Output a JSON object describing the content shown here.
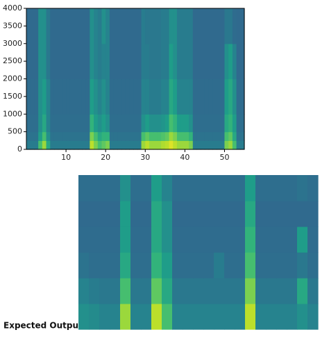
{
  "chart_data": [
    {
      "type": "heatmap",
      "colormap": "viridis",
      "clim": [
        0,
        1
      ],
      "xlim": [
        0,
        55
      ],
      "ylim": [
        0,
        4000
      ],
      "xticks": [
        10,
        20,
        30,
        40,
        50
      ],
      "yticks": [
        0,
        500,
        1000,
        1500,
        2000,
        2500,
        3000,
        3500,
        4000
      ],
      "xbins": [
        0,
        1,
        2,
        3,
        4,
        5,
        6,
        7,
        8,
        9,
        10,
        11,
        12,
        13,
        14,
        15,
        16,
        17,
        18,
        19,
        20,
        21,
        22,
        23,
        24,
        25,
        26,
        27,
        28,
        29,
        30,
        31,
        32,
        33,
        34,
        35,
        36,
        37,
        38,
        39,
        40,
        41,
        42,
        43,
        44,
        45,
        46,
        47,
        48,
        49,
        50,
        51,
        52,
        53,
        54,
        55
      ],
      "ybins": [
        0,
        250,
        500,
        1000,
        2000,
        3000,
        4000
      ],
      "z": [
        [
          0.42,
          0.42,
          0.42,
          0.7,
          0.85,
          0.6,
          0.42,
          0.42,
          0.42,
          0.42,
          0.42,
          0.42,
          0.42,
          0.42,
          0.42,
          0.42,
          0.9,
          0.8,
          0.7,
          0.75,
          0.8,
          0.42,
          0.42,
          0.42,
          0.42,
          0.42,
          0.42,
          0.42,
          0.42,
          0.85,
          0.9,
          0.85,
          0.85,
          0.85,
          0.88,
          0.9,
          0.95,
          0.9,
          0.85,
          0.85,
          0.85,
          0.8,
          0.42,
          0.42,
          0.42,
          0.42,
          0.42,
          0.42,
          0.42,
          0.42,
          0.8,
          0.85,
          0.7,
          0.42,
          0.42
        ],
        [
          0.38,
          0.38,
          0.38,
          0.55,
          0.7,
          0.5,
          0.38,
          0.38,
          0.38,
          0.38,
          0.38,
          0.38,
          0.38,
          0.38,
          0.38,
          0.38,
          0.8,
          0.7,
          0.6,
          0.65,
          0.65,
          0.38,
          0.38,
          0.38,
          0.38,
          0.38,
          0.38,
          0.38,
          0.38,
          0.7,
          0.75,
          0.7,
          0.7,
          0.7,
          0.72,
          0.75,
          0.85,
          0.8,
          0.7,
          0.7,
          0.7,
          0.65,
          0.38,
          0.38,
          0.38,
          0.38,
          0.38,
          0.38,
          0.38,
          0.38,
          0.7,
          0.75,
          0.6,
          0.38,
          0.38
        ],
        [
          0.36,
          0.36,
          0.36,
          0.5,
          0.6,
          0.45,
          0.36,
          0.36,
          0.36,
          0.36,
          0.36,
          0.36,
          0.36,
          0.36,
          0.36,
          0.36,
          0.65,
          0.55,
          0.5,
          0.55,
          0.5,
          0.36,
          0.36,
          0.36,
          0.36,
          0.36,
          0.36,
          0.36,
          0.36,
          0.5,
          0.55,
          0.5,
          0.5,
          0.5,
          0.52,
          0.55,
          0.7,
          0.65,
          0.55,
          0.55,
          0.55,
          0.5,
          0.36,
          0.36,
          0.36,
          0.36,
          0.36,
          0.36,
          0.36,
          0.36,
          0.6,
          0.65,
          0.55,
          0.36,
          0.36
        ],
        [
          0.35,
          0.35,
          0.35,
          0.5,
          0.55,
          0.45,
          0.35,
          0.35,
          0.35,
          0.35,
          0.35,
          0.35,
          0.35,
          0.35,
          0.35,
          0.35,
          0.55,
          0.5,
          0.45,
          0.5,
          0.45,
          0.35,
          0.35,
          0.35,
          0.35,
          0.35,
          0.35,
          0.35,
          0.35,
          0.45,
          0.45,
          0.42,
          0.42,
          0.42,
          0.45,
          0.45,
          0.6,
          0.55,
          0.45,
          0.45,
          0.45,
          0.45,
          0.35,
          0.35,
          0.35,
          0.35,
          0.35,
          0.35,
          0.35,
          0.35,
          0.55,
          0.6,
          0.5,
          0.35,
          0.35
        ],
        [
          0.34,
          0.34,
          0.34,
          0.5,
          0.5,
          0.4,
          0.34,
          0.34,
          0.34,
          0.34,
          0.34,
          0.34,
          0.34,
          0.34,
          0.34,
          0.34,
          0.5,
          0.45,
          0.42,
          0.45,
          0.45,
          0.34,
          0.34,
          0.34,
          0.34,
          0.34,
          0.34,
          0.34,
          0.34,
          0.42,
          0.42,
          0.4,
          0.4,
          0.4,
          0.42,
          0.42,
          0.55,
          0.5,
          0.42,
          0.42,
          0.42,
          0.42,
          0.34,
          0.34,
          0.34,
          0.34,
          0.34,
          0.34,
          0.34,
          0.34,
          0.5,
          0.55,
          0.45,
          0.34,
          0.34
        ],
        [
          0.34,
          0.34,
          0.34,
          0.5,
          0.5,
          0.4,
          0.34,
          0.34,
          0.34,
          0.34,
          0.34,
          0.34,
          0.34,
          0.34,
          0.34,
          0.34,
          0.5,
          0.45,
          0.42,
          0.5,
          0.45,
          0.34,
          0.34,
          0.34,
          0.34,
          0.34,
          0.34,
          0.34,
          0.34,
          0.42,
          0.4,
          0.4,
          0.4,
          0.4,
          0.42,
          0.42,
          0.5,
          0.5,
          0.42,
          0.42,
          0.42,
          0.42,
          0.34,
          0.34,
          0.34,
          0.34,
          0.34,
          0.34,
          0.34,
          0.34,
          0.4,
          0.4,
          0.35,
          0.34,
          0.34
        ]
      ]
    },
    {
      "type": "heatmap",
      "colormap": "viridis",
      "clim": [
        0,
        1
      ],
      "label": "Expected Output",
      "z": [
        [
          0.5,
          0.48,
          0.45,
          0.45,
          0.85,
          0.45,
          0.45,
          0.9,
          0.7,
          0.45,
          0.45,
          0.45,
          0.45,
          0.45,
          0.45,
          0.45,
          0.9,
          0.45,
          0.45,
          0.45,
          0.45,
          0.5,
          0.45
        ],
        [
          0.45,
          0.42,
          0.4,
          0.4,
          0.7,
          0.4,
          0.4,
          0.75,
          0.6,
          0.4,
          0.4,
          0.4,
          0.4,
          0.4,
          0.4,
          0.4,
          0.8,
          0.4,
          0.4,
          0.4,
          0.4,
          0.6,
          0.4
        ],
        [
          0.38,
          0.36,
          0.36,
          0.36,
          0.6,
          0.36,
          0.36,
          0.65,
          0.55,
          0.36,
          0.36,
          0.36,
          0.36,
          0.42,
          0.36,
          0.36,
          0.7,
          0.36,
          0.36,
          0.36,
          0.36,
          0.4,
          0.36
        ],
        [
          0.35,
          0.35,
          0.35,
          0.35,
          0.55,
          0.35,
          0.35,
          0.6,
          0.5,
          0.35,
          0.35,
          0.35,
          0.35,
          0.35,
          0.35,
          0.35,
          0.65,
          0.35,
          0.35,
          0.35,
          0.35,
          0.55,
          0.35
        ],
        [
          0.34,
          0.34,
          0.34,
          0.34,
          0.55,
          0.34,
          0.34,
          0.6,
          0.5,
          0.34,
          0.34,
          0.34,
          0.34,
          0.34,
          0.34,
          0.34,
          0.6,
          0.34,
          0.34,
          0.34,
          0.34,
          0.34,
          0.34
        ],
        [
          0.36,
          0.36,
          0.36,
          0.36,
          0.5,
          0.36,
          0.36,
          0.55,
          0.45,
          0.36,
          0.36,
          0.36,
          0.36,
          0.36,
          0.36,
          0.36,
          0.55,
          0.36,
          0.36,
          0.36,
          0.36,
          0.38,
          0.36
        ]
      ]
    }
  ]
}
